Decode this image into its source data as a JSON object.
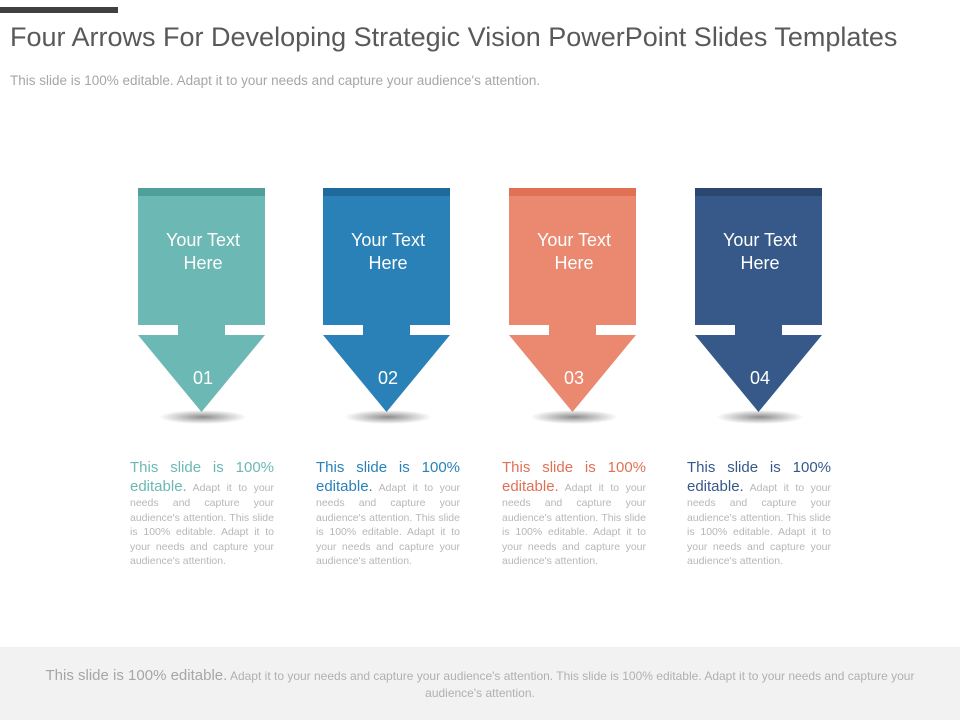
{
  "title": "Four Arrows For Developing Strategic Vision PowerPoint Slides Templates",
  "subtitle": "This slide is 100% editable. Adapt it to your needs and capture your audience's attention.",
  "arrows": [
    {
      "label_line1": "Your Text",
      "label_line2": "Here",
      "number": "01",
      "color": "#6cb8b4",
      "accent": "#4f9f9b",
      "desc_lead": "This slide is 100% editable.",
      "desc_body": "Adapt it to your needs and capture your audience's attention. This slide is 100% editable. Adapt it to your needs and capture your audience's attention."
    },
    {
      "label_line1": "Your Text",
      "label_line2": "Here",
      "number": "02",
      "color": "#2981b8",
      "accent": "#1f6a9a",
      "desc_lead": "This slide is 100% editable.",
      "desc_body": "Adapt it to your needs and capture your audience's attention. This slide is 100% editable. Adapt it to your needs and capture your audience's attention."
    },
    {
      "label_line1": "Your Text",
      "label_line2": "Here",
      "number": "03",
      "color": "#ea8870",
      "accent": "#e07155",
      "desc_lead": "This slide is 100% editable.",
      "desc_body": "Adapt it to your needs and capture your audience's attention. This slide is 100% editable. Adapt it to your needs and capture your audience's attention."
    },
    {
      "label_line1": "Your Text",
      "label_line2": "Here",
      "number": "04",
      "color": "#36598a",
      "accent": "#2b4770",
      "desc_lead": "This slide is 100% editable.",
      "desc_body": "Adapt it to your needs and capture your audience's attention. This slide is 100% editable. Adapt it to your needs and capture your audience's attention."
    }
  ],
  "footer": {
    "lead": "This slide is 100% editable.",
    "body": "Adapt it to your needs and capture your audience's attention. This slide is 100% editable. Adapt it to your needs and capture your audience's attention."
  }
}
